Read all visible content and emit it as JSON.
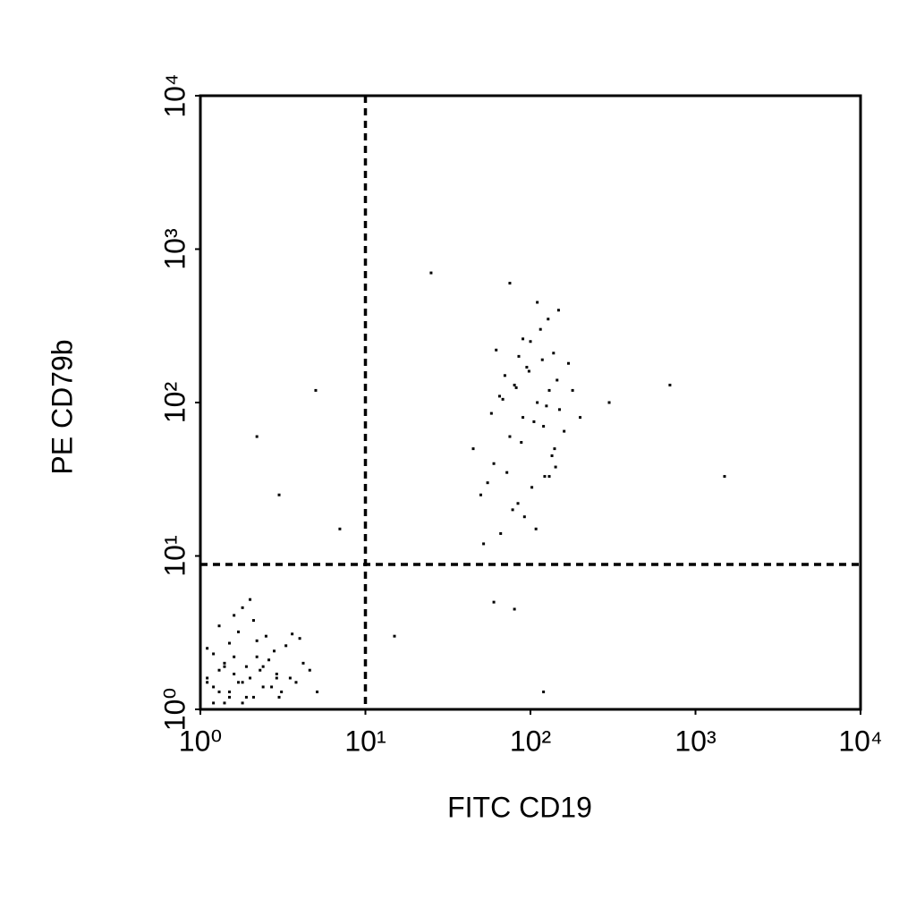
{
  "chart_data": {
    "type": "scatter",
    "x_label": "FITC CD19",
    "y_label": "PE CD79b",
    "xscale": "log",
    "yscale": "log",
    "grid": false,
    "color": "#000000",
    "xlim": [
      1,
      10000
    ],
    "ylim": [
      1,
      10000
    ],
    "xticks": [
      {
        "value": 1,
        "label": "10⁰"
      },
      {
        "value": 10,
        "label": "10¹"
      },
      {
        "value": 100,
        "label": "10²"
      },
      {
        "value": 1000,
        "label": "10³"
      },
      {
        "value": 10000,
        "label": "10⁴"
      }
    ],
    "yticks": [
      {
        "value": 1,
        "label": "10⁰"
      },
      {
        "value": 10,
        "label": "10¹"
      },
      {
        "value": 100,
        "label": "10²"
      },
      {
        "value": 1000,
        "label": "10³"
      },
      {
        "value": 10000,
        "label": "10⁴"
      }
    ],
    "gates": {
      "x": 10,
      "y": 8.8
    },
    "series": [
      {
        "color": "#000000",
        "x": [
          1.2,
          1.5,
          1.8,
          2.1,
          1.3,
          1.6,
          2.4,
          2.9,
          1.1,
          1.4,
          1.9,
          2.2,
          3.1,
          3.5,
          1.7,
          2.6,
          1.2,
          1.5,
          2.0,
          2.8,
          3.8,
          4.2,
          1.3,
          1.8,
          2.3,
          1.6,
          1.1,
          2.5,
          3.3,
          1.4,
          1.9,
          2.7,
          4.6,
          5.1,
          1.2,
          1.7,
          2.1,
          3.0,
          1.5,
          2.4,
          1.3,
          1.6,
          2.2,
          3.6,
          1.1,
          1.8,
          2.9,
          1.4,
          2.0,
          4.0,
          60,
          75,
          90,
          110,
          130,
          150,
          70,
          85,
          100,
          120,
          140,
          55,
          65,
          80,
          95,
          115,
          135,
          160,
          50,
          72,
          88,
          105,
          125,
          145,
          170,
          62,
          78,
          92,
          108,
          128,
          148,
          58,
          68,
          82,
          98,
          118,
          138,
          45,
          180,
          200,
          52,
          66,
          84,
          102,
          122,
          142,
          90,
          110,
          130,
          75,
          25,
          2.2,
          5,
          7,
          3,
          700,
          1500,
          300,
          120,
          60,
          15,
          80
        ],
        "y": [
          1.1,
          1.3,
          1.5,
          1.2,
          1.8,
          2.2,
          1.4,
          1.7,
          2.5,
          1.1,
          1.9,
          2.8,
          1.3,
          1.6,
          3.2,
          2.1,
          1.4,
          1.2,
          1.6,
          2.4,
          1.5,
          2.0,
          3.5,
          1.1,
          1.8,
          4.1,
          1.6,
          3.0,
          2.6,
          1.9,
          1.2,
          1.4,
          1.8,
          1.3,
          2.3,
          1.5,
          3.8,
          1.2,
          2.7,
          1.9,
          1.3,
          1.7,
          2.2,
          3.1,
          1.5,
          4.6,
          1.6,
          2.0,
          5.2,
          2.9,
          40,
          60,
          80,
          100,
          120,
          90,
          150,
          200,
          250,
          70,
          50,
          30,
          110,
          130,
          170,
          300,
          45,
          65,
          25,
          35,
          55,
          75,
          95,
          140,
          180,
          220,
          20,
          18,
          15,
          350,
          400,
          85,
          105,
          125,
          160,
          190,
          210,
          50,
          120,
          80,
          12,
          14,
          22,
          28,
          33,
          38,
          260,
          450,
          33,
          600,
          700,
          60,
          120,
          15,
          25,
          130,
          33,
          100,
          1.3,
          5,
          3,
          4.5
        ]
      }
    ]
  }
}
